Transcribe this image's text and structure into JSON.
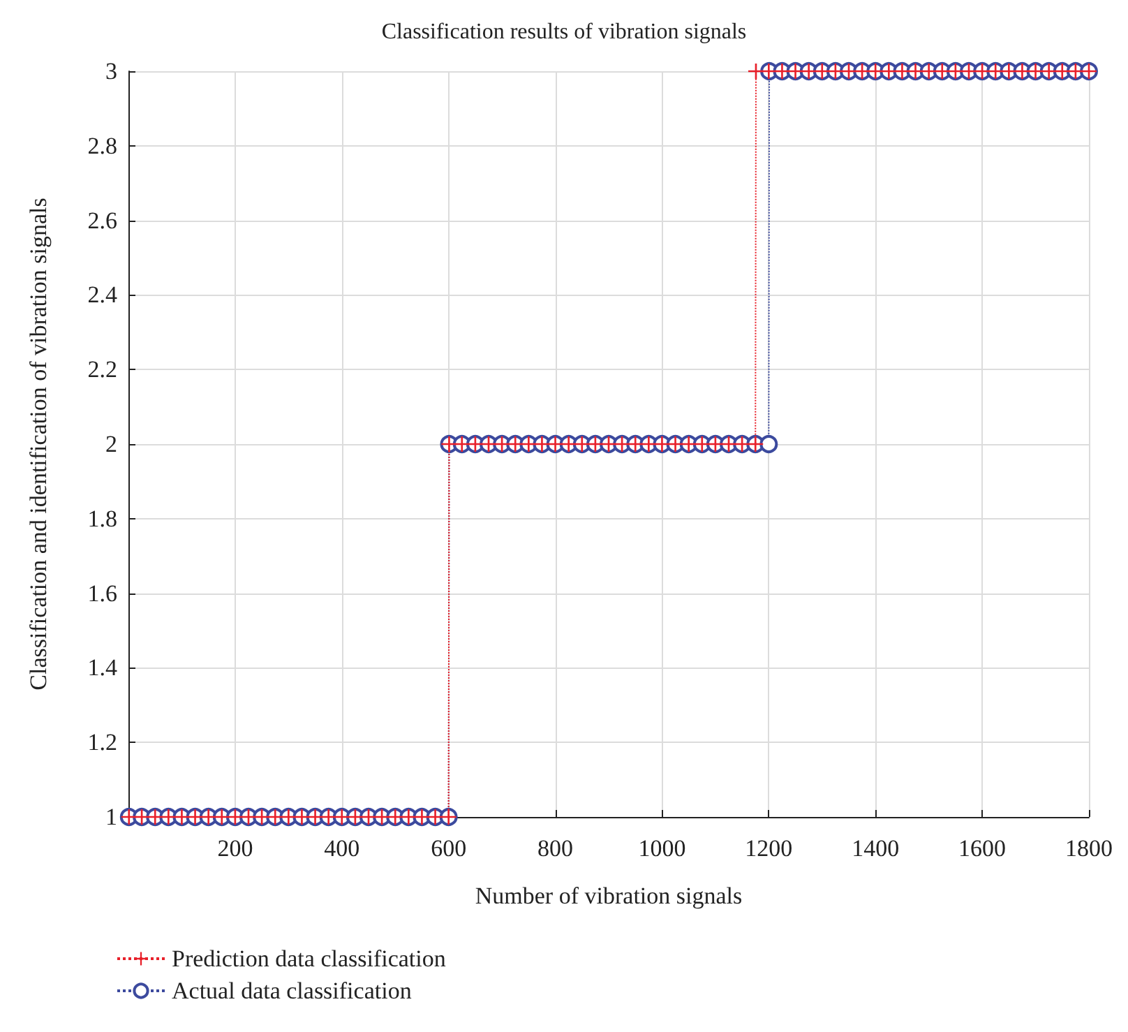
{
  "chart_data": {
    "type": "line",
    "title": "Classification results of vibration signals",
    "xlabel": "Number of vibration signals",
    "ylabel": "Classification and identification of vibration signals",
    "xlim": [
      0,
      1800
    ],
    "xticks": [
      200,
      400,
      600,
      800,
      1000,
      1200,
      1400,
      1600,
      1800
    ],
    "ylim": [
      1,
      3
    ],
    "yticks": [
      1,
      1.2,
      1.4,
      1.6,
      1.8,
      2,
      2.2,
      2.4,
      2.6,
      2.8,
      3
    ],
    "grid": true,
    "legend": "bottom left",
    "line_style": "dotted",
    "series": [
      {
        "name": "Prediction data classification",
        "color": "#e8202a",
        "marker": "cross",
        "x": [
          1,
          25,
          50,
          75,
          100,
          125,
          150,
          175,
          200,
          225,
          250,
          275,
          300,
          325,
          350,
          375,
          400,
          425,
          450,
          475,
          500,
          525,
          550,
          575,
          600,
          601,
          625,
          650,
          675,
          700,
          725,
          750,
          775,
          800,
          825,
          850,
          875,
          900,
          925,
          950,
          975,
          1000,
          1025,
          1050,
          1075,
          1100,
          1125,
          1150,
          1175,
          1176,
          1200,
          1225,
          1250,
          1275,
          1300,
          1325,
          1350,
          1375,
          1400,
          1425,
          1450,
          1475,
          1500,
          1525,
          1550,
          1575,
          1600,
          1625,
          1650,
          1675,
          1700,
          1725,
          1750,
          1775,
          1800
        ],
        "values": [
          1,
          1,
          1,
          1,
          1,
          1,
          1,
          1,
          1,
          1,
          1,
          1,
          1,
          1,
          1,
          1,
          1,
          1,
          1,
          1,
          1,
          1,
          1,
          1,
          1,
          2,
          2,
          2,
          2,
          2,
          2,
          2,
          2,
          2,
          2,
          2,
          2,
          2,
          2,
          2,
          2,
          2,
          2,
          2,
          2,
          2,
          2,
          2,
          2,
          3,
          3,
          3,
          3,
          3,
          3,
          3,
          3,
          3,
          3,
          3,
          3,
          3,
          3,
          3,
          3,
          3,
          3,
          3,
          3,
          3,
          3,
          3,
          3,
          3,
          3
        ]
      },
      {
        "name": "Actual data classification",
        "color": "#3c4a9e",
        "marker": "circle",
        "x": [
          1,
          25,
          50,
          75,
          100,
          125,
          150,
          175,
          200,
          225,
          250,
          275,
          300,
          325,
          350,
          375,
          400,
          425,
          450,
          475,
          500,
          525,
          550,
          575,
          600,
          601,
          625,
          650,
          675,
          700,
          725,
          750,
          775,
          800,
          825,
          850,
          875,
          900,
          925,
          950,
          975,
          1000,
          1025,
          1050,
          1075,
          1100,
          1125,
          1150,
          1175,
          1200,
          1201,
          1225,
          1250,
          1275,
          1300,
          1325,
          1350,
          1375,
          1400,
          1425,
          1450,
          1475,
          1500,
          1525,
          1550,
          1575,
          1600,
          1625,
          1650,
          1675,
          1700,
          1725,
          1750,
          1775,
          1800
        ],
        "values": [
          1,
          1,
          1,
          1,
          1,
          1,
          1,
          1,
          1,
          1,
          1,
          1,
          1,
          1,
          1,
          1,
          1,
          1,
          1,
          1,
          1,
          1,
          1,
          1,
          1,
          2,
          2,
          2,
          2,
          2,
          2,
          2,
          2,
          2,
          2,
          2,
          2,
          2,
          2,
          2,
          2,
          2,
          2,
          2,
          2,
          2,
          2,
          2,
          2,
          2,
          3,
          3,
          3,
          3,
          3,
          3,
          3,
          3,
          3,
          3,
          3,
          3,
          3,
          3,
          3,
          3,
          3,
          3,
          3,
          3,
          3,
          3,
          3,
          3,
          3
        ]
      }
    ]
  }
}
